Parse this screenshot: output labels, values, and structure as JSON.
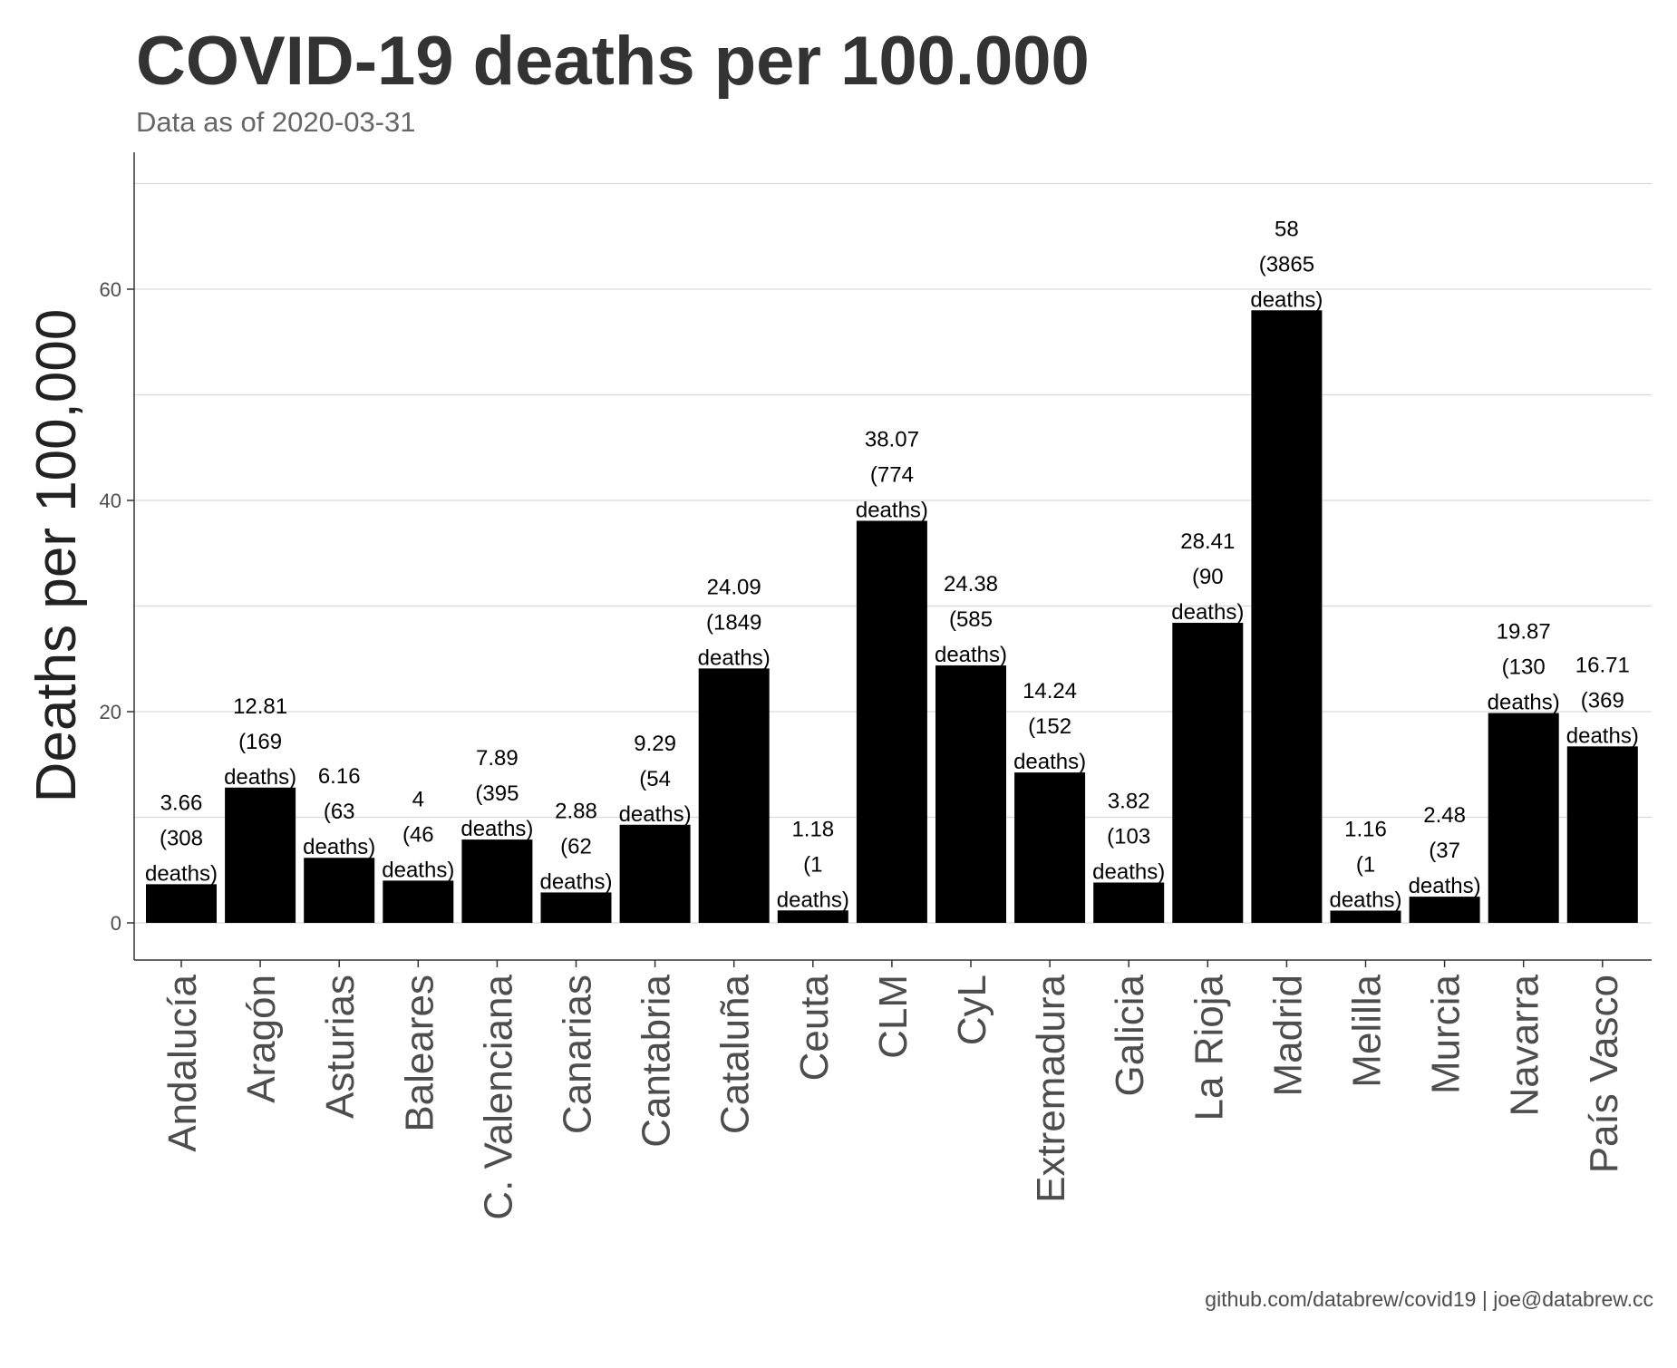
{
  "chart_data": {
    "type": "bar",
    "title": "COVID-19 deaths per 100.000",
    "subtitle": "Data as of 2020-03-31",
    "caption": "github.com/databrew/covid19 | joe@databrew.cc",
    "xlabel": "",
    "ylabel": "Deaths per 100,000",
    "ylim": [
      0,
      70
    ],
    "yticks": [
      0,
      20,
      40,
      60
    ],
    "grid": "horizontal",
    "bar_color": "#000000",
    "categories": [
      "Andalucía",
      "Aragón",
      "Asturias",
      "Baleares",
      "C. Valenciana",
      "Canarias",
      "Cantabria",
      "Cataluña",
      "Ceuta",
      "CLM",
      "CyL",
      "Extremadura",
      "Galicia",
      "La Rioja",
      "Madrid",
      "Melilla",
      "Murcia",
      "Navarra",
      "País Vasco"
    ],
    "values": [
      3.66,
      12.81,
      6.16,
      4,
      7.89,
      2.88,
      9.29,
      24.09,
      1.18,
      38.07,
      24.38,
      14.24,
      3.82,
      28.41,
      58,
      1.16,
      2.48,
      19.87,
      16.71
    ],
    "data_labels": [
      [
        "3.66",
        "(308",
        "deaths)"
      ],
      [
        "12.81",
        "(169",
        "deaths)"
      ],
      [
        "6.16",
        "(63",
        "deaths)"
      ],
      [
        "4",
        "(46",
        "deaths)"
      ],
      [
        "7.89",
        "(395",
        "deaths)"
      ],
      [
        "2.88",
        "(62",
        "deaths)"
      ],
      [
        "9.29",
        "(54",
        "deaths)"
      ],
      [
        "24.09",
        "(1849",
        "deaths)"
      ],
      [
        "1.18",
        "(1",
        "deaths)"
      ],
      [
        "38.07",
        "(774",
        "deaths)"
      ],
      [
        "24.38",
        "(585",
        "deaths)"
      ],
      [
        "14.24",
        "(152",
        "deaths)"
      ],
      [
        "3.82",
        "(103",
        "deaths)"
      ],
      [
        "28.41",
        "(90",
        "deaths)"
      ],
      [
        "58",
        "(3865",
        "deaths)"
      ],
      [
        "1.16",
        "(1",
        "deaths)"
      ],
      [
        "2.48",
        "(37",
        "deaths)"
      ],
      [
        "19.87",
        "(130",
        "deaths)"
      ],
      [
        "16.71",
        "(369",
        "deaths)"
      ]
    ]
  }
}
